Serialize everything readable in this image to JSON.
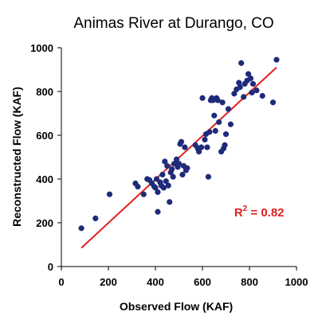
{
  "chart_data": {
    "type": "scatter",
    "title": "Animas River at Durango, CO",
    "xlabel": "Observed Flow (KAF)",
    "ylabel": "Reconstructed Flow (KAF)",
    "xlim": [
      0,
      1000
    ],
    "ylim": [
      0,
      1000
    ],
    "x_ticks": [
      "0",
      "200",
      "400",
      "600",
      "800",
      "1000"
    ],
    "y_ticks": [
      "0",
      "200",
      "400",
      "600",
      "800",
      "1000"
    ],
    "grid": false,
    "colors": {
      "points": "#1f2a7a",
      "fit_line": "#e02020",
      "annotation": "#e02020",
      "axis": "#000000"
    },
    "points": [
      [
        85,
        175
      ],
      [
        145,
        220
      ],
      [
        205,
        330
      ],
      [
        315,
        380
      ],
      [
        325,
        365
      ],
      [
        350,
        330
      ],
      [
        365,
        400
      ],
      [
        375,
        395
      ],
      [
        385,
        380
      ],
      [
        395,
        365
      ],
      [
        400,
        360
      ],
      [
        405,
        400
      ],
      [
        410,
        340
      ],
      [
        410,
        250
      ],
      [
        420,
        385
      ],
      [
        425,
        370
      ],
      [
        430,
        420
      ],
      [
        435,
        360
      ],
      [
        440,
        480
      ],
      [
        445,
        390
      ],
      [
        450,
        460
      ],
      [
        455,
        370
      ],
      [
        460,
        295
      ],
      [
        465,
        430
      ],
      [
        470,
        445
      ],
      [
        475,
        410
      ],
      [
        480,
        470
      ],
      [
        490,
        490
      ],
      [
        495,
        455
      ],
      [
        500,
        470
      ],
      [
        505,
        560
      ],
      [
        510,
        570
      ],
      [
        515,
        420
      ],
      [
        520,
        460
      ],
      [
        525,
        545
      ],
      [
        530,
        440
      ],
      [
        535,
        450
      ],
      [
        570,
        555
      ],
      [
        580,
        540
      ],
      [
        585,
        525
      ],
      [
        595,
        545
      ],
      [
        600,
        770
      ],
      [
        610,
        580
      ],
      [
        615,
        605
      ],
      [
        620,
        545
      ],
      [
        625,
        410
      ],
      [
        630,
        615
      ],
      [
        635,
        760
      ],
      [
        640,
        770
      ],
      [
        645,
        760
      ],
      [
        650,
        690
      ],
      [
        655,
        620
      ],
      [
        660,
        770
      ],
      [
        665,
        760
      ],
      [
        670,
        660
      ],
      [
        680,
        525
      ],
      [
        685,
        750
      ],
      [
        690,
        540
      ],
      [
        695,
        555
      ],
      [
        700,
        605
      ],
      [
        710,
        720
      ],
      [
        720,
        650
      ],
      [
        735,
        790
      ],
      [
        745,
        810
      ],
      [
        755,
        840
      ],
      [
        760,
        820
      ],
      [
        765,
        930
      ],
      [
        775,
        775
      ],
      [
        780,
        835
      ],
      [
        790,
        850
      ],
      [
        795,
        880
      ],
      [
        805,
        860
      ],
      [
        810,
        795
      ],
      [
        815,
        835
      ],
      [
        830,
        805
      ],
      [
        855,
        780
      ],
      [
        900,
        750
      ],
      [
        915,
        945
      ]
    ],
    "fit_line": {
      "x": [
        85,
        915
      ],
      "y": [
        85,
        910
      ]
    },
    "annotation": {
      "base": "R",
      "sup": "2",
      "text": " = 0.82",
      "x": 735,
      "y": 230
    }
  }
}
